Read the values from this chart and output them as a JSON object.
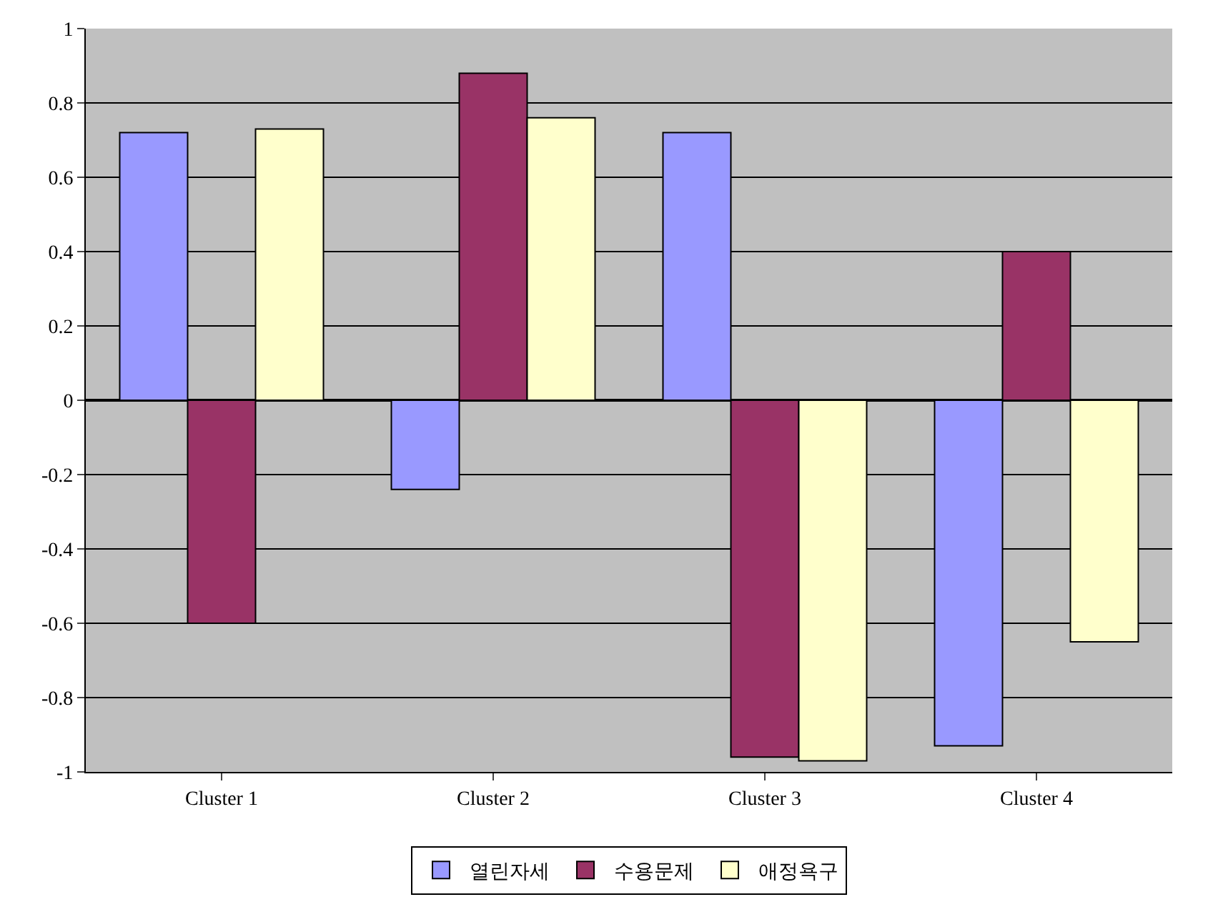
{
  "chart_data": {
    "type": "bar",
    "categories": [
      "Cluster 1",
      "Cluster 2",
      "Cluster 3",
      "Cluster 4"
    ],
    "series": [
      {
        "name": "열린자세",
        "color": "#9999ff",
        "values": [
          0.72,
          -0.24,
          0.72,
          -0.93
        ]
      },
      {
        "name": "수용문제",
        "color": "#993366",
        "values": [
          -0.6,
          0.88,
          -0.96,
          0.4
        ]
      },
      {
        "name": "애정욕구",
        "color": "#ffffcc",
        "values": [
          0.73,
          0.76,
          -0.97,
          -0.65
        ]
      }
    ],
    "ylim": [
      -1,
      1
    ],
    "yticks": [
      -1,
      -0.8,
      -0.6,
      -0.4,
      -0.2,
      0,
      0.2,
      0.4,
      0.6,
      0.8,
      1
    ],
    "grid": "y",
    "legend": "bottom"
  }
}
